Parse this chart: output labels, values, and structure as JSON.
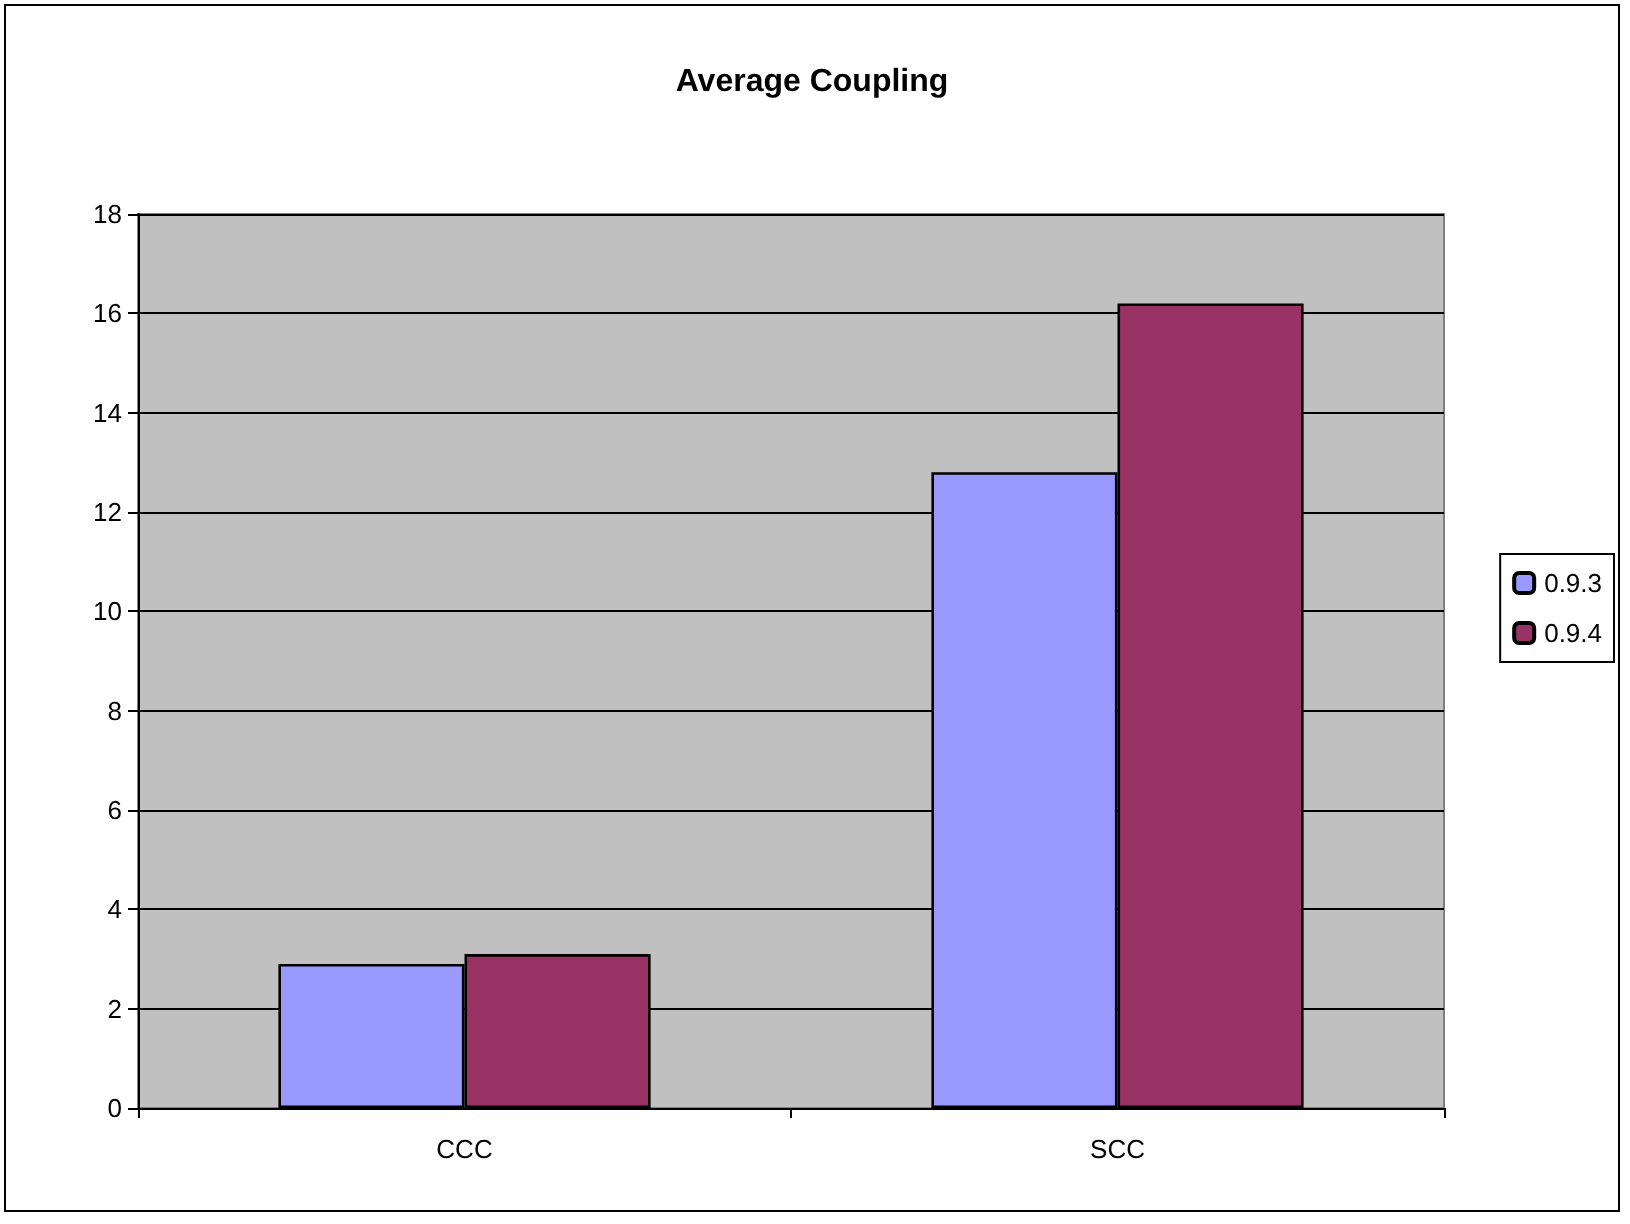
{
  "chart_data": {
    "type": "bar",
    "title": "Average Coupling",
    "categories": [
      "CCC",
      "SCC"
    ],
    "series": [
      {
        "name": "0.9.3",
        "color": "#9999ff",
        "values": [
          2.9,
          12.8
        ]
      },
      {
        "name": "0.9.4",
        "color": "#993366",
        "values": [
          3.1,
          16.2
        ]
      }
    ],
    "ylim": [
      0,
      18
    ],
    "yticks": [
      0,
      2,
      4,
      6,
      8,
      10,
      12,
      14,
      16,
      18
    ],
    "grid": "y",
    "legend": "right"
  }
}
